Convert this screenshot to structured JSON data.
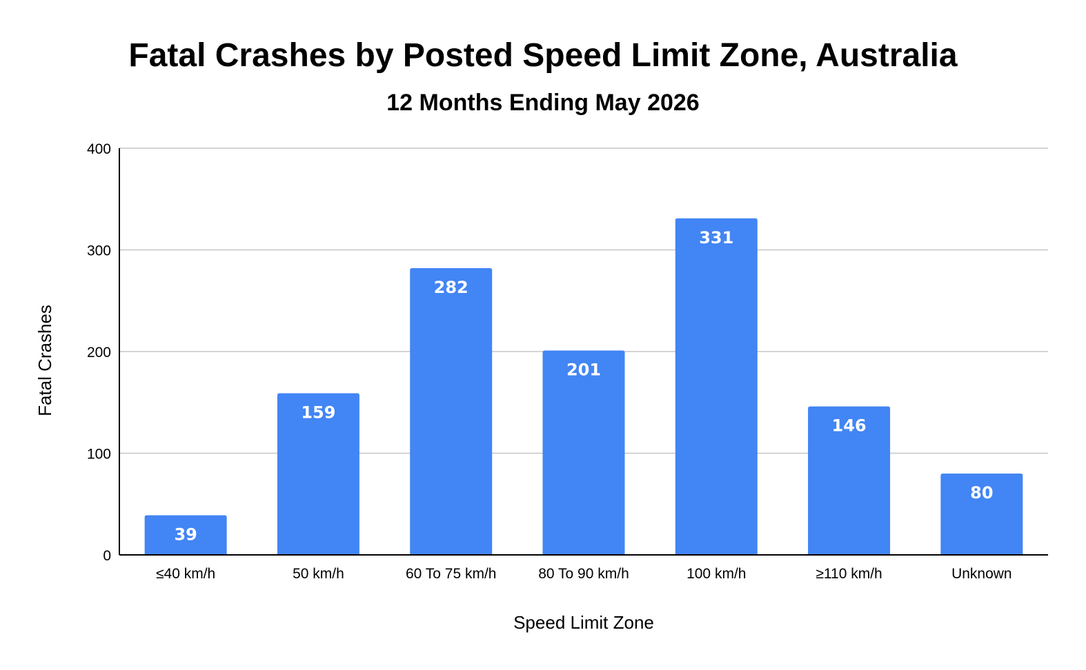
{
  "chart_data": {
    "type": "bar",
    "title": "Fatal Crashes by Posted Speed Limit Zone, Australia",
    "subtitle": "12 Months Ending May 2026",
    "xlabel": "Speed Limit Zone",
    "ylabel": "Fatal Crashes",
    "categories": [
      "≤40 km/h",
      "50 km/h",
      "60 To 75 km/h",
      "80 To 90 km/h",
      "100 km/h",
      "≥110 km/h",
      "Unknown"
    ],
    "values": [
      39,
      159,
      282,
      201,
      331,
      146,
      80
    ],
    "data_labels": [
      "39",
      "159",
      "282",
      "201",
      "331",
      "146",
      "80"
    ],
    "ylim": [
      0,
      400
    ],
    "yticks": [
      0,
      100,
      200,
      300,
      400
    ],
    "ytick_labels": [
      "0",
      "100",
      "200",
      "300",
      "400"
    ],
    "grid": true,
    "legend": "none",
    "bar_color": "#4285f4",
    "label_color": "#ffffff"
  }
}
